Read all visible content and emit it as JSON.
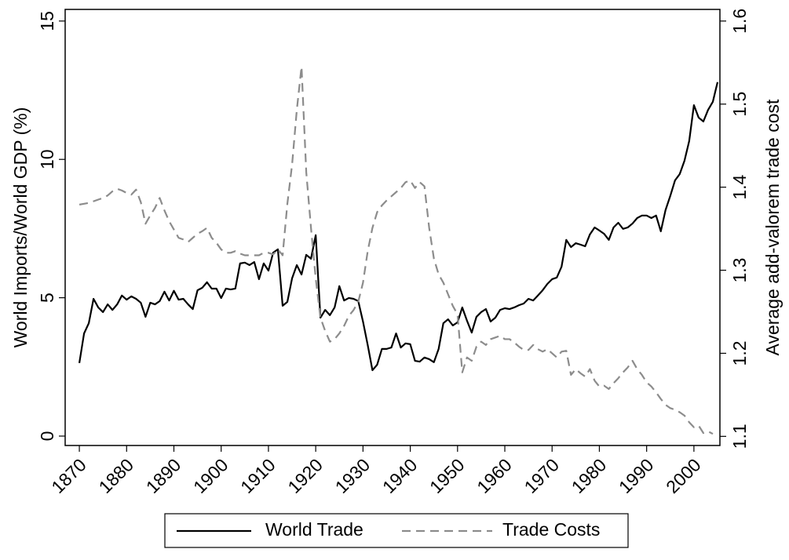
{
  "chart_data": {
    "type": "line",
    "y_label": "World Imports/World GDP (%)",
    "y2_label": "Average add-valorem trade cost",
    "x": [
      1870,
      1871,
      1872,
      1873,
      1874,
      1875,
      1876,
      1877,
      1878,
      1879,
      1880,
      1881,
      1882,
      1883,
      1884,
      1885,
      1886,
      1887,
      1888,
      1889,
      1890,
      1891,
      1892,
      1893,
      1894,
      1895,
      1896,
      1897,
      1898,
      1899,
      1900,
      1901,
      1902,
      1903,
      1904,
      1905,
      1906,
      1907,
      1908,
      1909,
      1910,
      1911,
      1912,
      1913,
      1914,
      1915,
      1916,
      1917,
      1918,
      1919,
      1920,
      1921,
      1922,
      1923,
      1924,
      1925,
      1926,
      1927,
      1928,
      1929,
      1930,
      1931,
      1932,
      1933,
      1934,
      1935,
      1936,
      1937,
      1938,
      1939,
      1940,
      1941,
      1942,
      1943,
      1944,
      1945,
      1946,
      1947,
      1948,
      1949,
      1950,
      1951,
      1952,
      1953,
      1954,
      1955,
      1956,
      1957,
      1958,
      1959,
      1960,
      1961,
      1962,
      1963,
      1964,
      1965,
      1966,
      1967,
      1968,
      1969,
      1970,
      1971,
      1972,
      1973,
      1974,
      1975,
      1976,
      1977,
      1978,
      1979,
      1980,
      1981,
      1982,
      1983,
      1984,
      1985,
      1986,
      1987,
      1988,
      1989,
      1990,
      1991,
      1992,
      1993,
      1994,
      1995,
      1996,
      1997,
      1998,
      1999,
      2000,
      2001,
      2002,
      2003,
      2004,
      2005
    ],
    "series": [
      {
        "name": "World Trade",
        "color": "#000000",
        "linestyle": "solid",
        "values": [
          2.64,
          3.71,
          4.08,
          4.96,
          4.65,
          4.48,
          4.76,
          4.56,
          4.76,
          5.08,
          4.93,
          5.05,
          4.96,
          4.82,
          4.31,
          4.82,
          4.76,
          4.88,
          5.22,
          4.9,
          5.25,
          4.93,
          4.96,
          4.76,
          4.59,
          5.27,
          5.36,
          5.56,
          5.33,
          5.33,
          4.99,
          5.33,
          5.3,
          5.33,
          6.24,
          6.27,
          6.18,
          6.29,
          5.67,
          6.24,
          5.98,
          6.63,
          6.75,
          4.71,
          4.85,
          5.7,
          6.18,
          5.84,
          6.55,
          6.41,
          7.26,
          4.28,
          4.56,
          4.37,
          4.65,
          5.42,
          4.9,
          4.99,
          4.96,
          4.88,
          4.14,
          3.29,
          2.38,
          2.58,
          3.15,
          3.15,
          3.2,
          3.71,
          3.2,
          3.35,
          3.32,
          2.72,
          2.69,
          2.84,
          2.78,
          2.67,
          3.15,
          4.08,
          4.22,
          4.0,
          4.11,
          4.65,
          4.17,
          3.74,
          4.31,
          4.48,
          4.59,
          4.14,
          4.28,
          4.56,
          4.62,
          4.59,
          4.65,
          4.73,
          4.79,
          4.96,
          4.9,
          5.08,
          5.27,
          5.5,
          5.67,
          5.73,
          6.12,
          7.09,
          6.83,
          6.97,
          6.92,
          6.86,
          7.29,
          7.54,
          7.43,
          7.31,
          7.09,
          7.54,
          7.71,
          7.49,
          7.54,
          7.68,
          7.88,
          7.97,
          7.97,
          7.88,
          7.97,
          7.4,
          8.17,
          8.68,
          9.24,
          9.47,
          9.95,
          10.66,
          11.96,
          11.51,
          11.37,
          11.79,
          12.08,
          12.79
        ]
      },
      {
        "name": "Trade Costs",
        "color": "#8c8c8c",
        "linestyle": "dashed",
        "axis": "y2",
        "values": [
          1.379,
          1.38,
          1.381,
          1.383,
          1.385,
          1.387,
          1.39,
          1.395,
          1.398,
          1.396,
          1.393,
          1.391,
          1.397,
          1.382,
          1.356,
          1.366,
          1.375,
          1.387,
          1.372,
          1.359,
          1.349,
          1.339,
          1.337,
          1.334,
          1.339,
          1.344,
          1.347,
          1.351,
          1.339,
          1.333,
          1.325,
          1.321,
          1.321,
          1.323,
          1.32,
          1.318,
          1.318,
          1.318,
          1.318,
          1.321,
          1.321,
          1.319,
          1.325,
          1.318,
          1.38,
          1.427,
          1.493,
          1.545,
          1.418,
          1.351,
          1.29,
          1.243,
          1.227,
          1.214,
          1.217,
          1.224,
          1.233,
          1.245,
          1.252,
          1.262,
          1.285,
          1.323,
          1.351,
          1.37,
          1.378,
          1.384,
          1.389,
          1.394,
          1.399,
          1.406,
          1.408,
          1.399,
          1.406,
          1.401,
          1.351,
          1.314,
          1.295,
          1.285,
          1.271,
          1.257,
          1.247,
          1.177,
          1.195,
          1.191,
          1.208,
          1.214,
          1.21,
          1.217,
          1.219,
          1.221,
          1.217,
          1.217,
          1.213,
          1.208,
          1.204,
          1.204,
          1.21,
          1.205,
          1.202,
          1.205,
          1.2,
          1.195,
          1.202,
          1.203,
          1.174,
          1.181,
          1.176,
          1.172,
          1.181,
          1.167,
          1.16,
          1.161,
          1.157,
          1.164,
          1.17,
          1.177,
          1.183,
          1.191,
          1.181,
          1.174,
          1.165,
          1.16,
          1.153,
          1.145,
          1.138,
          1.134,
          1.132,
          1.129,
          1.125,
          1.117,
          1.111,
          1.113,
          1.104,
          1.106,
          1.103,
          null
        ]
      }
    ],
    "xlim": [
      1867,
      2005.5
    ],
    "xticks": [
      1870,
      1880,
      1890,
      1900,
      1910,
      1920,
      1930,
      1940,
      1950,
      1960,
      1970,
      1980,
      1990,
      2000
    ],
    "ylim": [
      -0.34,
      15.42
    ],
    "yticks": [
      0,
      5,
      10,
      15
    ],
    "y2lim": [
      1.089,
      1.614
    ],
    "y2ticks": [
      1.1,
      1.2,
      1.3,
      1.4,
      1.5,
      1.6
    ],
    "legend": "bottom"
  }
}
